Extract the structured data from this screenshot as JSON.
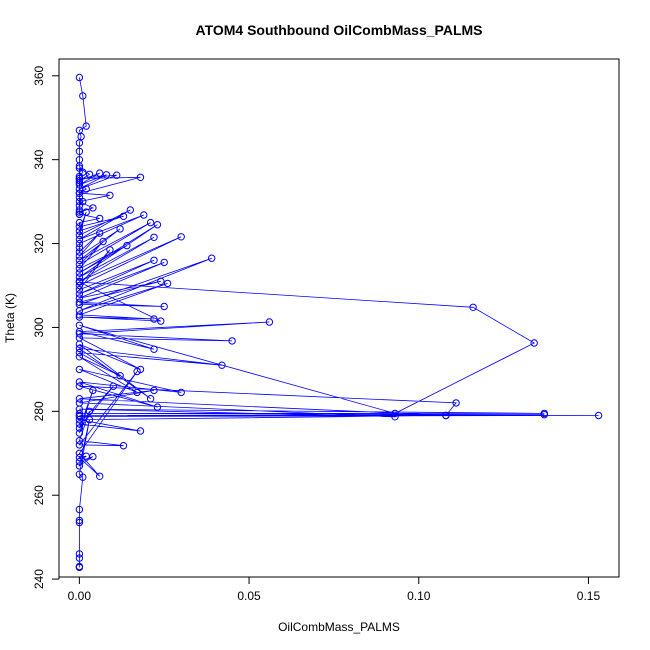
{
  "chart_data": {
    "type": "line",
    "title": "ATOM4 Southbound OilCombMass_PALMS",
    "xlabel": "OilCombMass_PALMS",
    "ylabel": "Theta (K)",
    "xlim": [
      -0.006,
      0.159
    ],
    "ylim": [
      240.5,
      364
    ],
    "xticks": [
      0.0,
      0.05,
      0.1,
      0.15
    ],
    "xtick_labels": [
      "0.00",
      "0.05",
      "0.10",
      "0.15"
    ],
    "yticks": [
      240,
      260,
      280,
      300,
      320,
      340,
      360
    ],
    "ytick_labels": [
      "240",
      "260",
      "280",
      "300",
      "320",
      "340",
      "360"
    ],
    "grid": false,
    "legend": "none",
    "series": [
      {
        "color": "#0000ff",
        "marker": "open-circle",
        "x": [
          0.0,
          0.001,
          0.002,
          0.0,
          0.0005,
          0.0,
          0.0,
          0.0,
          0.0,
          0.001,
          0.0,
          0.0,
          0.0,
          0.002,
          0.0,
          0.0,
          0.001,
          0.0,
          0.0,
          0.0,
          0.0,
          0.003,
          0.0,
          0.006,
          0.0,
          0.008,
          0.0,
          0.011,
          0.0,
          0.018,
          0.0,
          0.009,
          0.0,
          0.004,
          0.0,
          0.0,
          0.006,
          0.0,
          0.0,
          0.013,
          0.0,
          0.002,
          0.0,
          0.015,
          0.0,
          0.019,
          0.0,
          0.0,
          0.0,
          0.006,
          0.0,
          0.012,
          0.0,
          0.021,
          0.0,
          0.007,
          0.0,
          0.014,
          0.0,
          0.023,
          0.0,
          0.022,
          0.0,
          0.03,
          0.0,
          0.009,
          0.0,
          0.022,
          0.0,
          0.025,
          0.0,
          0.024,
          0.0,
          0.025,
          0.0,
          0.039,
          0.0,
          0.026,
          0.0,
          0.022,
          0.0,
          0.024,
          0.0,
          0.116,
          0.134,
          0.093,
          0.0,
          0.022,
          0.0,
          0.056,
          0.0,
          0.045,
          0.0,
          0.018,
          0.0,
          0.021,
          0.0,
          0.042,
          0.0,
          0.012,
          0.0,
          0.017,
          0.0,
          0.03,
          0.0,
          0.023,
          0.0,
          0.111,
          0.108,
          0.0,
          0.022,
          0.0,
          0.093,
          0.0,
          0.137,
          0.0,
          0.137,
          0.0,
          0.153,
          0.0,
          0.108,
          0.0,
          0.018,
          0.0,
          0.01,
          0.0,
          0.004,
          0.0,
          0.003,
          0.0,
          0.013,
          0.0,
          0.017,
          0.0,
          0.006,
          0.0,
          0.002,
          0.0,
          0.004,
          0.0,
          0.003,
          0.0,
          0.001,
          0.0,
          0.0,
          0.0,
          0.0,
          0.0,
          0.0,
          0.0
        ],
        "y": [
          359.6,
          355.2,
          348.0,
          347.0,
          345.5,
          344.0,
          342.0,
          340.0,
          338.5,
          337.0,
          336.0,
          335.5,
          334.5,
          333.0,
          332.0,
          331.0,
          330.0,
          329.0,
          328.0,
          327.0,
          338.0,
          336.5,
          335.0,
          336.8,
          334.0,
          336.4,
          333.0,
          336.3,
          335.5,
          335.8,
          332.0,
          331.5,
          330.0,
          328.5,
          327.5,
          327.0,
          326.0,
          325.0,
          324.0,
          326.5,
          323.0,
          327.5,
          322.0,
          328.0,
          321.0,
          326.8,
          320.0,
          319.0,
          318.0,
          322.5,
          317.0,
          323.5,
          316.0,
          325.0,
          315.0,
          320.5,
          314.0,
          319.5,
          313.0,
          324.5,
          312.0,
          321.5,
          311.0,
          321.6,
          310.0,
          318.5,
          309.0,
          316.0,
          308.0,
          315.5,
          307.0,
          311.0,
          306.0,
          305.0,
          305.5,
          316.5,
          304.0,
          310.5,
          303.0,
          302.0,
          302.5,
          301.5,
          310.8,
          304.8,
          296.3,
          279.5,
          300.5,
          294.8,
          299.0,
          301.3,
          298.5,
          296.8,
          297.5,
          290.0,
          296.0,
          283.0,
          295.0,
          291.0,
          294.0,
          288.5,
          293.0,
          284.5,
          290.0,
          284.5,
          287.0,
          281.0,
          286.0,
          282.0,
          279.0,
          283.0,
          285.0,
          282.0,
          278.7,
          280.5,
          279.5,
          279.5,
          279.2,
          279.0,
          279.0,
          278.8,
          279.0,
          278.0,
          275.3,
          277.0,
          286.0,
          276.0,
          285.0,
          274.8,
          280.0,
          273.0,
          271.8,
          272.0,
          289.5,
          270.0,
          264.5,
          269.0,
          269.3,
          268.0,
          269.2,
          267.0,
          278.0,
          265.0,
          264.3,
          256.6,
          254.0,
          253.5,
          246.0,
          245.0,
          243.0,
          242.8
        ]
      }
    ]
  }
}
